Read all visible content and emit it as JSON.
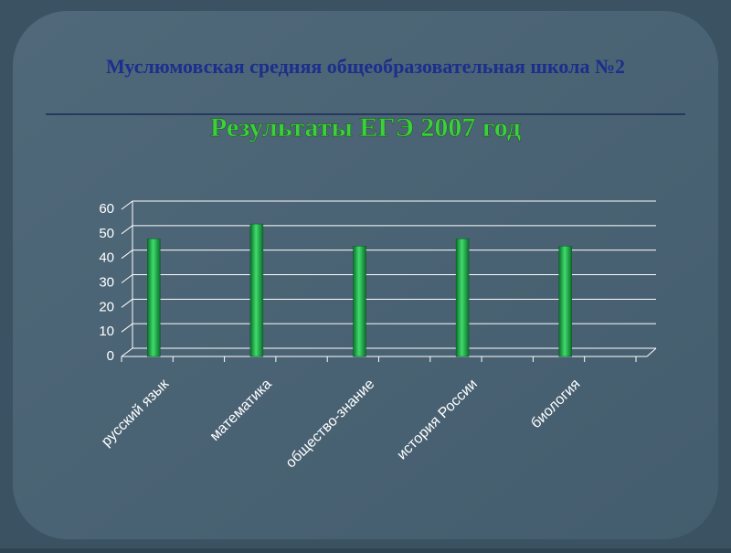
{
  "chart_data": {
    "type": "bar",
    "title": "Муслюмовская средняя общеобразовательная школа №2",
    "subtitle": "Результаты ЕГЭ 2007 год",
    "categories": [
      "русский язык",
      "математика",
      "общество-знание",
      "история России",
      "биология"
    ],
    "values": [
      48,
      54,
      45,
      48,
      45
    ],
    "color": "#1fa84a",
    "ylim": [
      0,
      60
    ],
    "yticks": [
      0,
      10,
      20,
      30,
      40,
      50,
      60
    ],
    "grid": true
  }
}
